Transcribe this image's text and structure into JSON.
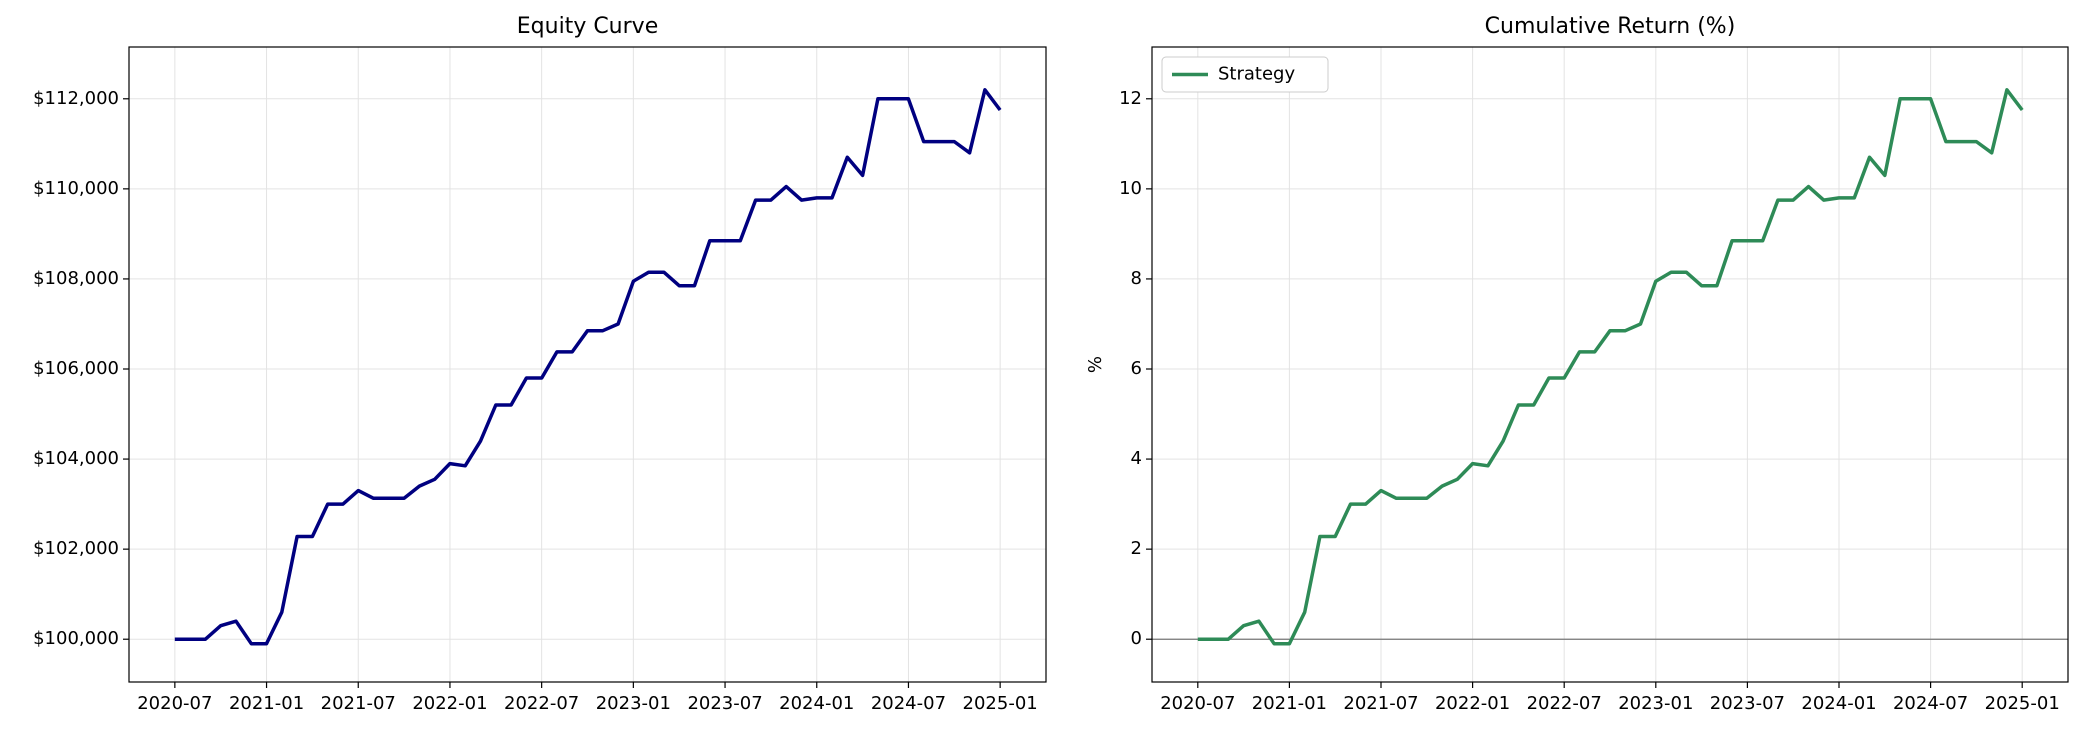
{
  "chart_data": [
    {
      "type": "line",
      "title": "Equity Curve",
      "x": [
        "2020-07",
        "2020-08",
        "2020-09",
        "2020-10",
        "2020-11",
        "2020-12",
        "2021-01",
        "2021-02",
        "2021-03",
        "2021-04",
        "2021-05",
        "2021-06",
        "2021-07",
        "2021-08",
        "2021-09",
        "2021-10",
        "2021-11",
        "2021-12",
        "2022-01",
        "2022-02",
        "2022-03",
        "2022-04",
        "2022-05",
        "2022-06",
        "2022-07",
        "2022-08",
        "2022-09",
        "2022-10",
        "2022-11",
        "2022-12",
        "2023-01",
        "2023-02",
        "2023-03",
        "2023-04",
        "2023-05",
        "2023-06",
        "2023-07",
        "2023-08",
        "2023-09",
        "2023-10",
        "2023-11",
        "2023-12",
        "2024-01",
        "2024-02",
        "2024-03",
        "2024-04",
        "2024-05",
        "2024-06",
        "2024-07",
        "2024-08",
        "2024-09",
        "2024-10",
        "2024-11",
        "2024-12",
        "2025-01"
      ],
      "series": [
        {
          "color": "#000080",
          "values": [
            100000,
            100000,
            100000,
            100300,
            100400,
            99900,
            99900,
            100600,
            102280,
            102280,
            103000,
            103000,
            103300,
            103130,
            103130,
            103130,
            103400,
            103550,
            103900,
            103850,
            104400,
            105200,
            105200,
            105800,
            105800,
            106380,
            106380,
            106850,
            106850,
            107000,
            107950,
            108150,
            108150,
            107850,
            107850,
            108850,
            108850,
            108850,
            109750,
            109750,
            110050,
            109750,
            109800,
            109800,
            110700,
            110300,
            112000,
            112000,
            112000,
            111050,
            111050,
            111050,
            110800,
            112200,
            111750
          ]
        }
      ],
      "xlim": [
        "2020-04",
        "2025-04"
      ],
      "xticks": [
        "2020-07",
        "2021-01",
        "2021-07",
        "2022-01",
        "2022-07",
        "2023-01",
        "2023-07",
        "2024-01",
        "2024-07",
        "2025-01"
      ],
      "ylim": [
        99050,
        113150
      ],
      "yticks": [
        {
          "value": 100000,
          "label": "$100,000"
        },
        {
          "value": 102000,
          "label": "$102,000"
        },
        {
          "value": 104000,
          "label": "$104,000"
        },
        {
          "value": 106000,
          "label": "$106,000"
        },
        {
          "value": 108000,
          "label": "$108,000"
        },
        {
          "value": 110000,
          "label": "$110,000"
        },
        {
          "value": 112000,
          "label": "$112,000"
        }
      ],
      "grid": true
    },
    {
      "type": "line",
      "title": "Cumulative Return (%)",
      "y_label": "%",
      "x": [
        "2020-07",
        "2020-08",
        "2020-09",
        "2020-10",
        "2020-11",
        "2020-12",
        "2021-01",
        "2021-02",
        "2021-03",
        "2021-04",
        "2021-05",
        "2021-06",
        "2021-07",
        "2021-08",
        "2021-09",
        "2021-10",
        "2021-11",
        "2021-12",
        "2022-01",
        "2022-02",
        "2022-03",
        "2022-04",
        "2022-05",
        "2022-06",
        "2022-07",
        "2022-08",
        "2022-09",
        "2022-10",
        "2022-11",
        "2022-12",
        "2023-01",
        "2023-02",
        "2023-03",
        "2023-04",
        "2023-05",
        "2023-06",
        "2023-07",
        "2023-08",
        "2023-09",
        "2023-10",
        "2023-11",
        "2023-12",
        "2024-01",
        "2024-02",
        "2024-03",
        "2024-04",
        "2024-05",
        "2024-06",
        "2024-07",
        "2024-08",
        "2024-09",
        "2024-10",
        "2024-11",
        "2024-12",
        "2025-01"
      ],
      "series": [
        {
          "name": "Strategy",
          "color": "#2e8b57",
          "values": [
            0,
            0,
            0,
            0.3,
            0.4,
            -0.1,
            -0.1,
            0.6,
            2.28,
            2.28,
            3,
            3,
            3.3,
            3.13,
            3.13,
            3.13,
            3.4,
            3.55,
            3.9,
            3.85,
            4.4,
            5.2,
            5.2,
            5.8,
            5.8,
            6.38,
            6.38,
            6.85,
            6.85,
            7,
            7.95,
            8.15,
            8.15,
            7.85,
            7.85,
            8.85,
            8.85,
            8.85,
            9.75,
            9.75,
            10.05,
            9.75,
            9.8,
            9.8,
            10.7,
            10.3,
            12,
            12,
            12,
            11.05,
            11.05,
            11.05,
            10.8,
            12.2,
            11.75
          ]
        }
      ],
      "xlim": [
        "2020-04",
        "2025-04"
      ],
      "xticks": [
        "2020-07",
        "2021-01",
        "2021-07",
        "2022-01",
        "2022-07",
        "2023-01",
        "2023-07",
        "2024-01",
        "2024-07",
        "2025-01"
      ],
      "ylim": [
        -0.95,
        13.15
      ],
      "yticks": [
        0,
        2,
        4,
        6,
        8,
        10,
        12
      ],
      "reference_line": 0,
      "legend": "upper-left",
      "grid": true
    }
  ]
}
